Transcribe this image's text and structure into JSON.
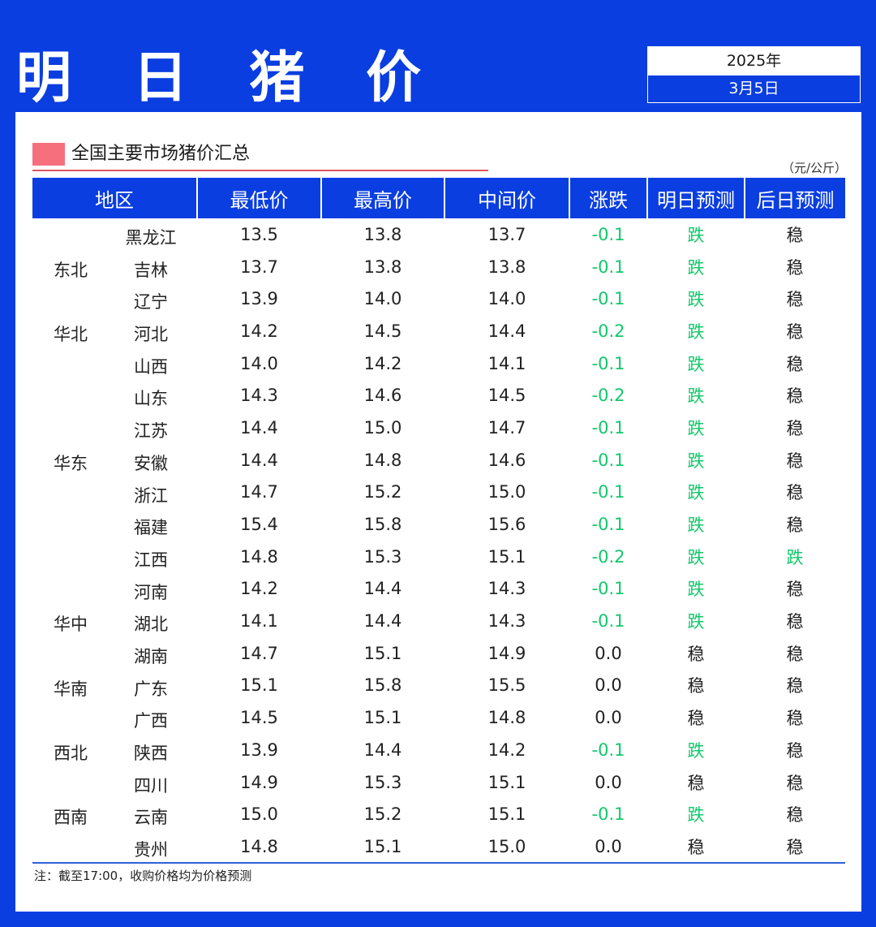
{
  "header": {
    "title": "明 日 猪 价",
    "year": "2025年",
    "date": "3月5日"
  },
  "section": {
    "title": "全国主要市场猪价汇总",
    "unit": "（元/公斤）"
  },
  "table": {
    "columns": [
      "地区",
      "最低价",
      "最高价",
      "中间价",
      "涨跌",
      "明日预测",
      "后日预测"
    ],
    "rows": [
      {
        "region": "",
        "province": "黑龙江",
        "low": "13.5",
        "high": "13.8",
        "mid": "13.7",
        "change": "-0.1",
        "tomorrow": "跌",
        "dayafter": "稳"
      },
      {
        "region": "东北",
        "province": "吉林",
        "low": "13.7",
        "high": "13.8",
        "mid": "13.8",
        "change": "-0.1",
        "tomorrow": "跌",
        "dayafter": "稳"
      },
      {
        "region": "",
        "province": "辽宁",
        "low": "13.9",
        "high": "14.0",
        "mid": "14.0",
        "change": "-0.1",
        "tomorrow": "跌",
        "dayafter": "稳"
      },
      {
        "region": "华北",
        "province": "河北",
        "low": "14.2",
        "high": "14.5",
        "mid": "14.4",
        "change": "-0.2",
        "tomorrow": "跌",
        "dayafter": "稳"
      },
      {
        "region": "",
        "province": "山西",
        "low": "14.0",
        "high": "14.2",
        "mid": "14.1",
        "change": "-0.1",
        "tomorrow": "跌",
        "dayafter": "稳"
      },
      {
        "region": "",
        "province": "山东",
        "low": "14.3",
        "high": "14.6",
        "mid": "14.5",
        "change": "-0.2",
        "tomorrow": "跌",
        "dayafter": "稳"
      },
      {
        "region": "",
        "province": "江苏",
        "low": "14.4",
        "high": "15.0",
        "mid": "14.7",
        "change": "-0.1",
        "tomorrow": "跌",
        "dayafter": "稳"
      },
      {
        "region": "华东",
        "province": "安徽",
        "low": "14.4",
        "high": "14.8",
        "mid": "14.6",
        "change": "-0.1",
        "tomorrow": "跌",
        "dayafter": "稳"
      },
      {
        "region": "",
        "province": "浙江",
        "low": "14.7",
        "high": "15.2",
        "mid": "15.0",
        "change": "-0.1",
        "tomorrow": "跌",
        "dayafter": "稳"
      },
      {
        "region": "",
        "province": "福建",
        "low": "15.4",
        "high": "15.8",
        "mid": "15.6",
        "change": "-0.1",
        "tomorrow": "跌",
        "dayafter": "稳"
      },
      {
        "region": "",
        "province": "江西",
        "low": "14.8",
        "high": "15.3",
        "mid": "15.1",
        "change": "-0.2",
        "tomorrow": "跌",
        "dayafter": "跌"
      },
      {
        "region": "",
        "province": "河南",
        "low": "14.2",
        "high": "14.4",
        "mid": "14.3",
        "change": "-0.1",
        "tomorrow": "跌",
        "dayafter": "稳"
      },
      {
        "region": "华中",
        "province": "湖北",
        "low": "14.1",
        "high": "14.4",
        "mid": "14.3",
        "change": "-0.1",
        "tomorrow": "跌",
        "dayafter": "稳"
      },
      {
        "region": "",
        "province": "湖南",
        "low": "14.7",
        "high": "15.1",
        "mid": "14.9",
        "change": "0.0",
        "tomorrow": "稳",
        "dayafter": "稳"
      },
      {
        "region": "华南",
        "province": "广东",
        "low": "15.1",
        "high": "15.8",
        "mid": "15.5",
        "change": "0.0",
        "tomorrow": "稳",
        "dayafter": "稳"
      },
      {
        "region": "",
        "province": "广西",
        "low": "14.5",
        "high": "15.1",
        "mid": "14.8",
        "change": "0.0",
        "tomorrow": "稳",
        "dayafter": "稳"
      },
      {
        "region": "西北",
        "province": "陕西",
        "low": "13.9",
        "high": "14.4",
        "mid": "14.2",
        "change": "-0.1",
        "tomorrow": "跌",
        "dayafter": "稳"
      },
      {
        "region": "",
        "province": "四川",
        "low": "14.9",
        "high": "15.3",
        "mid": "15.1",
        "change": "0.0",
        "tomorrow": "稳",
        "dayafter": "稳"
      },
      {
        "region": "西南",
        "province": "云南",
        "low": "15.0",
        "high": "15.2",
        "mid": "15.1",
        "change": "-0.1",
        "tomorrow": "跌",
        "dayafter": "稳"
      },
      {
        "region": "",
        "province": "贵州",
        "low": "14.8",
        "high": "15.1",
        "mid": "15.0",
        "change": "0.0",
        "tomorrow": "稳",
        "dayafter": "稳"
      }
    ]
  },
  "footer": {
    "note": "注：截至17:00，收购价格均为价格预测"
  },
  "colors": {
    "brand_blue": "#0a3ee0",
    "down_green": "#12c86b",
    "marker_red": "#f5707c"
  }
}
